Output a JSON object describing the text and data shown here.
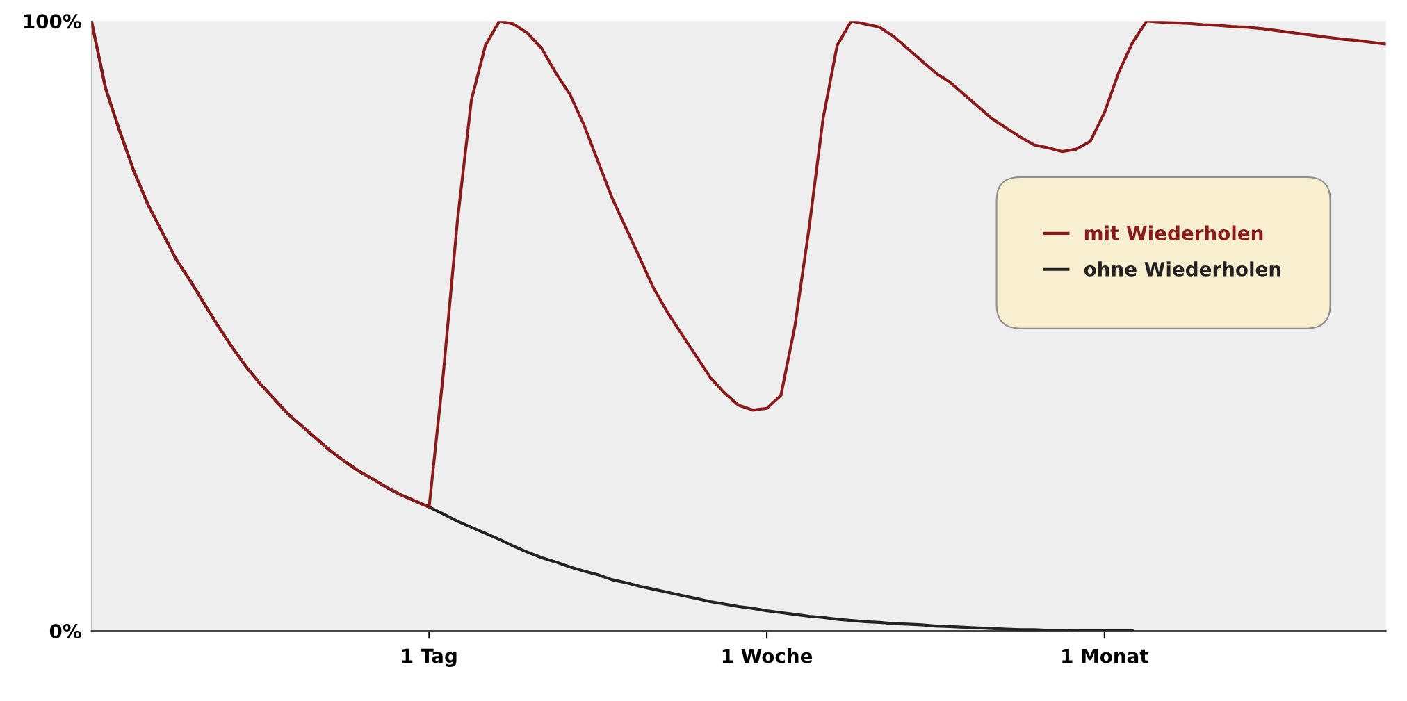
{
  "chart_data": {
    "type": "line",
    "categories": [
      null,
      null,
      null,
      null,
      null,
      null,
      null,
      null,
      null,
      null,
      null,
      null,
      null,
      null,
      null,
      null,
      null,
      null,
      null,
      null,
      null,
      null,
      null,
      null,
      "1 Tag",
      null,
      null,
      null,
      null,
      null,
      null,
      null,
      null,
      null,
      null,
      null,
      null,
      null,
      null,
      null,
      null,
      null,
      null,
      null,
      null,
      null,
      null,
      null,
      "1 Woche",
      null,
      null,
      null,
      null,
      null,
      null,
      null,
      null,
      null,
      null,
      null,
      null,
      null,
      null,
      null,
      null,
      null,
      null,
      null,
      null,
      null,
      null,
      null,
      "1 Monat",
      null,
      null,
      null,
      null,
      null,
      null,
      null,
      null,
      null,
      null,
      null,
      null,
      null,
      null,
      null,
      null,
      null,
      null,
      null,
      null
    ],
    "ylim": [
      0,
      100
    ],
    "yticks": [
      {
        "value": 0,
        "label": "0%"
      },
      {
        "value": 100,
        "label": "100%"
      }
    ],
    "legend": "right",
    "grid": false,
    "marker": "none",
    "line_style": "solid",
    "series": [
      {
        "name": "mit Wiederholen",
        "color": "#8b1a1a",
        "values": [
          100,
          89,
          82,
          75.5,
          70,
          65.5,
          61,
          57.5,
          53.7,
          50,
          46.5,
          43.3,
          40.5,
          38,
          35.5,
          33.5,
          31.5,
          29.5,
          27.8,
          26.2,
          24.9,
          23.5,
          22.3,
          21.3,
          20.3,
          42,
          67,
          87,
          96,
          100,
          99.5,
          98,
          95.5,
          91.5,
          88,
          83,
          77,
          71,
          66,
          61,
          56,
          52,
          48.5,
          45,
          41.5,
          39,
          37,
          36.2,
          36.5,
          38.6,
          50,
          66,
          84,
          96,
          100,
          99.5,
          99,
          97.5,
          95.5,
          93.5,
          91.5,
          90,
          88,
          86,
          84,
          82.5,
          81,
          79.7,
          79.2,
          78.6,
          79,
          80.3,
          85,
          91.5,
          96.5,
          100,
          99.8,
          99.7,
          99.6,
          99.4,
          99.3,
          99.1,
          99,
          98.8,
          98.5,
          98.2,
          97.9,
          97.6,
          97.3,
          97,
          96.8,
          96.5,
          96.2
        ]
      },
      {
        "name": "ohne Wiederholen",
        "color": "#222222",
        "values": [
          100,
          89,
          82,
          75.5,
          70,
          65.5,
          61,
          57.5,
          53.7,
          50,
          46.5,
          43.3,
          40.5,
          38,
          35.5,
          33.5,
          31.5,
          29.5,
          27.8,
          26.2,
          24.9,
          23.5,
          22.3,
          21.3,
          20.3,
          19.2,
          18,
          17,
          16,
          15,
          13.9,
          12.9,
          12,
          11.3,
          10.5,
          9.8,
          9.2,
          8.4,
          7.9,
          7.3,
          6.8,
          6.3,
          5.8,
          5.3,
          4.8,
          4.4,
          4,
          3.7,
          3.3,
          3,
          2.7,
          2.4,
          2.2,
          1.9,
          1.7,
          1.5,
          1.4,
          1.2,
          1.1,
          1,
          0.8,
          0.7,
          0.6,
          0.5,
          0.4,
          0.3,
          0.2,
          0.2,
          0.1,
          0.1,
          0,
          0,
          0,
          0,
          0,
          null,
          null,
          null,
          null,
          null,
          null,
          null,
          null,
          null,
          null,
          null,
          null,
          null,
          null,
          null,
          null,
          null,
          null
        ]
      }
    ]
  }
}
